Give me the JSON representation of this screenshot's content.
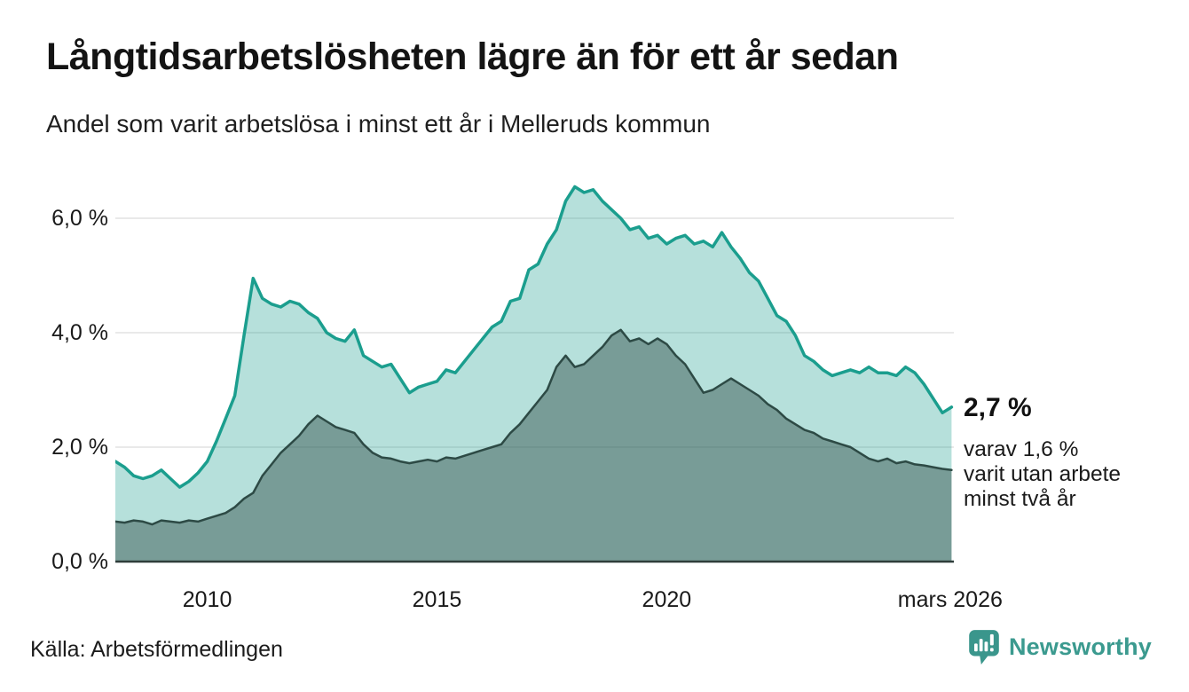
{
  "header": {
    "title": "Långtidsarbetslösheten lägre än för ett år sedan",
    "subtitle": "Andel som varit arbetslösa i minst ett år i Melleruds kommun"
  },
  "annotation": {
    "value_label": "2,7 %",
    "detail_lines": [
      "varav 1,6 %",
      "varit utan arbete",
      "minst två år"
    ]
  },
  "footer": {
    "source": "Källa: Arbetsförmedlingen",
    "brand": "Newsworthy",
    "brand_icon": "newsworthy-speech-bubble-barchart-icon"
  },
  "colors": {
    "accent_teal": "#1b9e8e",
    "light_fill": "rgba(27,158,142,0.32)",
    "dark_line": "#2d4a45",
    "dark_fill": "rgba(45,74,69,0.45)",
    "gridline": "#e2e2e2",
    "axis_line": "#2f3d3a",
    "text": "#1a1a1a",
    "brand_teal": "#3b9a8f"
  },
  "chart_data": {
    "type": "area",
    "title": "Långtidsarbetslösheten lägre än för ett år sedan",
    "subtitle": "Andel som varit arbetslösa i minst ett år i Melleruds kommun",
    "xlabel": "",
    "ylabel": "",
    "xlim": [
      2008,
      2026.25
    ],
    "ylim": [
      0,
      6.9
    ],
    "grid": true,
    "legend_position": "annotated-at-line-end",
    "unit": "%",
    "last_point_labels": {
      "minst_ett_ar": "2,7 %",
      "minst_tva_ar": "1,6 %"
    },
    "x": [
      2008,
      2008.2,
      2008.4,
      2008.6,
      2008.8,
      2009,
      2009.2,
      2009.4,
      2009.6,
      2009.8,
      2010,
      2010.2,
      2010.4,
      2010.6,
      2010.8,
      2011,
      2011.2,
      2011.4,
      2011.6,
      2011.8,
      2012,
      2012.2,
      2012.4,
      2012.6,
      2012.8,
      2013,
      2013.2,
      2013.4,
      2013.6,
      2013.8,
      2014,
      2014.2,
      2014.4,
      2014.6,
      2014.8,
      2015,
      2015.2,
      2015.4,
      2015.6,
      2015.8,
      2016,
      2016.2,
      2016.4,
      2016.6,
      2016.8,
      2017,
      2017.2,
      2017.4,
      2017.6,
      2017.8,
      2018,
      2018.2,
      2018.4,
      2018.6,
      2018.8,
      2019,
      2019.2,
      2019.4,
      2019.6,
      2019.8,
      2020,
      2020.2,
      2020.4,
      2020.6,
      2020.8,
      2021,
      2021.2,
      2021.4,
      2021.6,
      2021.8,
      2022,
      2022.2,
      2022.4,
      2022.6,
      2022.8,
      2023,
      2023.2,
      2023.4,
      2023.6,
      2023.8,
      2024,
      2024.2,
      2024.4,
      2024.6,
      2024.8,
      2025,
      2025.2,
      2025.4,
      2025.6,
      2025.8,
      2026,
      2026.2
    ],
    "series": [
      {
        "name": "Arbetslösa minst ett år",
        "line_color": "#1b9e8e",
        "fill_color": "rgba(27,158,142,0.32)",
        "line_width": 3.5,
        "values": [
          1.75,
          1.65,
          1.5,
          1.45,
          1.5,
          1.6,
          1.45,
          1.3,
          1.4,
          1.55,
          1.75,
          2.1,
          2.5,
          2.9,
          3.95,
          4.95,
          4.6,
          4.5,
          4.45,
          4.55,
          4.5,
          4.35,
          4.25,
          4.0,
          3.9,
          3.85,
          4.05,
          3.6,
          3.5,
          3.4,
          3.45,
          3.2,
          2.95,
          3.05,
          3.1,
          3.15,
          3.35,
          3.3,
          3.5,
          3.7,
          3.9,
          4.1,
          4.2,
          4.55,
          4.6,
          5.1,
          5.2,
          5.55,
          5.8,
          6.3,
          6.55,
          6.45,
          6.5,
          6.3,
          6.15,
          6.0,
          5.8,
          5.85,
          5.65,
          5.7,
          5.55,
          5.65,
          5.7,
          5.55,
          5.6,
          5.5,
          5.75,
          5.5,
          5.3,
          5.05,
          4.9,
          4.6,
          4.3,
          4.2,
          3.95,
          3.6,
          3.5,
          3.35,
          3.25,
          3.3,
          3.35,
          3.3,
          3.4,
          3.3,
          3.3,
          3.25,
          3.4,
          3.3,
          3.1,
          2.85,
          2.6,
          2.7
        ]
      },
      {
        "name": "Arbetslösa minst två år",
        "line_color": "#2d4a45",
        "fill_color": "rgba(45,74,69,0.45)",
        "line_width": 2.5,
        "values": [
          0.7,
          0.68,
          0.72,
          0.7,
          0.65,
          0.72,
          0.7,
          0.68,
          0.72,
          0.7,
          0.75,
          0.8,
          0.85,
          0.95,
          1.1,
          1.2,
          1.5,
          1.7,
          1.9,
          2.05,
          2.2,
          2.4,
          2.55,
          2.45,
          2.35,
          2.3,
          2.25,
          2.05,
          1.9,
          1.82,
          1.8,
          1.75,
          1.72,
          1.75,
          1.78,
          1.75,
          1.82,
          1.8,
          1.85,
          1.9,
          1.95,
          2.0,
          2.05,
          2.25,
          2.4,
          2.6,
          2.8,
          3.0,
          3.4,
          3.6,
          3.4,
          3.45,
          3.6,
          3.75,
          3.95,
          4.05,
          3.85,
          3.9,
          3.8,
          3.9,
          3.8,
          3.6,
          3.45,
          3.2,
          2.95,
          3.0,
          3.1,
          3.2,
          3.1,
          3.0,
          2.9,
          2.75,
          2.65,
          2.5,
          2.4,
          2.3,
          2.25,
          2.15,
          2.1,
          2.05,
          2.0,
          1.9,
          1.8,
          1.75,
          1.8,
          1.72,
          1.75,
          1.7,
          1.68,
          1.65,
          1.62,
          1.6
        ]
      }
    ],
    "yticks": [
      {
        "value": 0,
        "label": "0,0 %"
      },
      {
        "value": 2,
        "label": "2,0 %"
      },
      {
        "value": 4,
        "label": "4,0 %"
      },
      {
        "value": 6,
        "label": "6,0 %"
      }
    ],
    "xticks": [
      {
        "value": 2010,
        "label": "2010"
      },
      {
        "value": 2015,
        "label": "2015"
      },
      {
        "value": 2020,
        "label": "2020"
      },
      {
        "value": 2026.17,
        "label": "mars 2026"
      }
    ]
  }
}
